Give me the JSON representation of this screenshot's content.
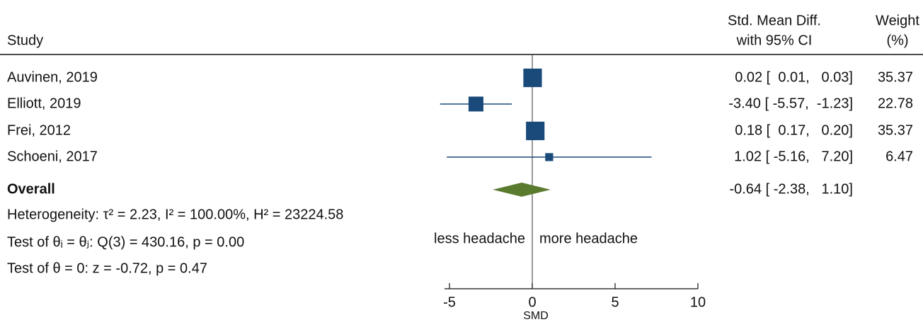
{
  "chart_data": {
    "type": "forest",
    "headers": {
      "study": "Study",
      "effect": [
        "Std. Mean Diff.",
        "with 95% CI"
      ],
      "weight": [
        "Weight",
        "(%)"
      ]
    },
    "studies": {
      "names": [
        "Auvinen, 2019",
        "Elliott, 2019",
        "Frei, 2012",
        "Schoeni, 2017"
      ],
      "values": [
        0.02,
        -3.4,
        0.18,
        1.02
      ],
      "lower": [
        0.01,
        -5.57,
        0.17,
        -5.16
      ],
      "upper": [
        0.03,
        -1.23,
        0.2,
        7.2
      ],
      "ci_labels": [
        "0.02 [  0.01,   0.03]",
        "-3.40 [ -5.57,  -1.23]",
        "0.18 [  0.17,   0.20]",
        "1.02 [ -5.16,   7.20]"
      ],
      "weights": [
        35.37,
        22.78,
        35.37,
        6.47
      ],
      "color": "#1a4a7a"
    },
    "overall": {
      "name": "Overall",
      "value": -0.64,
      "lower": -2.38,
      "upper": 1.1,
      "ci_label": "-0.64 [ -2.38,   1.10]",
      "color": "#5a7a2e"
    },
    "notes": [
      "Heterogeneity: τ² = 2.23, I² = 100.00%, H² = 23224.58",
      "Test of θᵢ = θⱼ: Q(3) = 430.16, p = 0.00",
      "Test of θ = 0: z = -0.72, p = 0.47"
    ],
    "annotations": {
      "left": "less headache",
      "right": "more headache"
    },
    "null_line": 0,
    "xlabel": "SMD",
    "xlim": [
      -5.3,
      10
    ],
    "xticks": [
      -5,
      0,
      5,
      10
    ]
  }
}
